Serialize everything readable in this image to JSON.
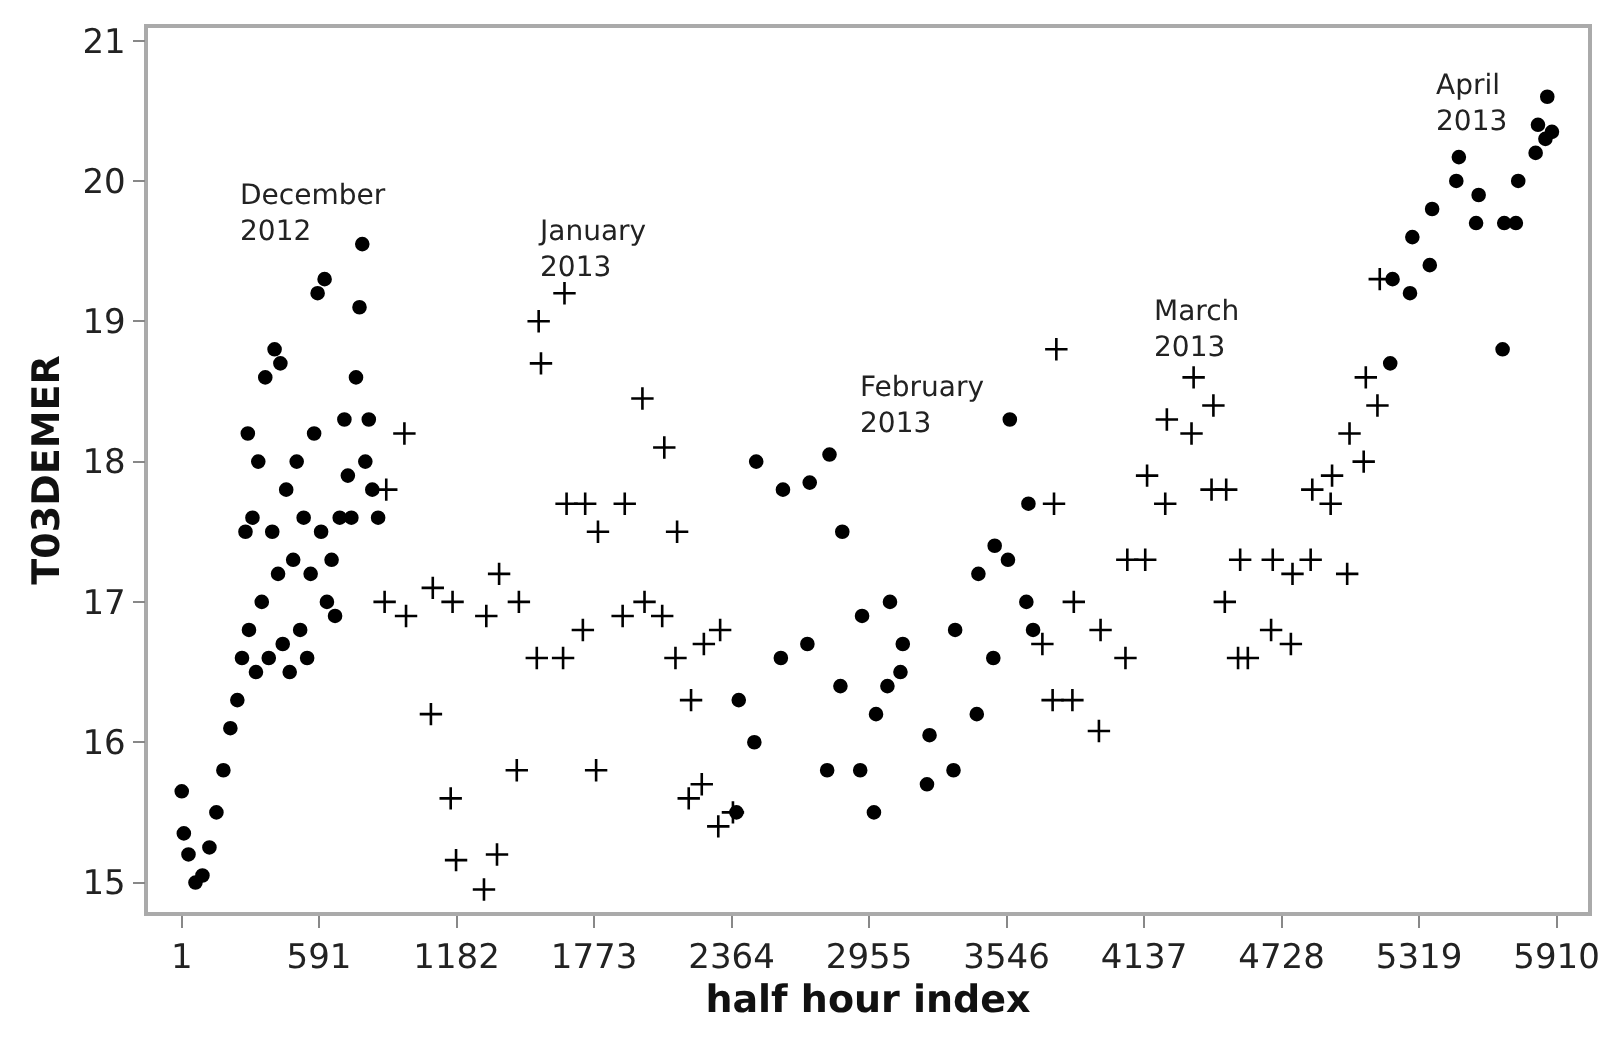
{
  "chart_data": {
    "type": "scatter",
    "xlabel": "half hour index",
    "ylabel": "T03DEMER",
    "xlim": [
      -144,
      6045
    ],
    "ylim": [
      14.79,
      21.09
    ],
    "xticks": [
      1,
      591,
      1182,
      1773,
      2364,
      2955,
      3546,
      4137,
      4728,
      5319,
      5910
    ],
    "yticks": [
      15,
      16,
      17,
      18,
      19,
      20,
      21
    ],
    "series": [
      {
        "color": "#000000",
        "marker": "circle",
        "x": [
          1,
          10,
          30,
          60,
          90,
          120,
          150,
          180,
          210,
          240,
          260,
          275,
          285,
          290,
          305,
          320,
          330,
          345,
          360,
          375,
          390,
          400,
          415,
          425,
          435,
          450,
          465,
          480,
          495,
          510,
          525,
          540,
          555,
          570,
          585,
          600,
          615,
          625,
          645,
          660,
          680,
          700,
          715,
          730,
          750,
          765,
          777,
          790,
          805,
          820,
          845
        ],
        "values": [
          15.65,
          15.35,
          15.2,
          15.0,
          15.05,
          15.25,
          15.5,
          15.8,
          16.1,
          16.3,
          16.6,
          17.5,
          18.2,
          16.8,
          17.6,
          16.5,
          18.0,
          17.0,
          18.6,
          16.6,
          17.5,
          18.8,
          17.2,
          18.7,
          16.7,
          17.8,
          16.5,
          17.3,
          18.0,
          16.8,
          17.6,
          16.6,
          17.2,
          18.2,
          19.2,
          17.5,
          19.3,
          17.0,
          17.3,
          16.9,
          17.6,
          18.3,
          17.9,
          17.6,
          18.6,
          19.1,
          19.55,
          18.0,
          18.3,
          17.8,
          17.6
        ]
      },
      {
        "color": "#000000",
        "marker": "cross",
        "x": [
          873,
          880,
          958,
          965,
          1072,
          1080,
          1157,
          1165,
          1180,
          1300,
          1310,
          1356,
          1365,
          1441,
          1450,
          1527,
          1535,
          1545,
          1640,
          1646,
          1655,
          1725,
          1735,
          1782,
          1790,
          1896,
          1905,
          1981,
          1990,
          2066,
          2075,
          2123,
          2130,
          2180,
          2190,
          2236,
          2245,
          2307,
          2315,
          2370
        ],
        "values": [
          17.0,
          17.8,
          18.2,
          16.9,
          16.2,
          17.1,
          15.6,
          17.0,
          15.16,
          14.95,
          16.9,
          15.2,
          17.2,
          15.8,
          17.0,
          16.6,
          19.0,
          18.7,
          16.6,
          19.2,
          17.7,
          16.8,
          17.7,
          15.8,
          17.5,
          16.9,
          17.7,
          18.45,
          17.0,
          16.9,
          18.1,
          16.6,
          17.5,
          15.6,
          16.3,
          15.7,
          16.7,
          15.4,
          16.8,
          15.5
        ]
      },
      {
        "color": "#000000",
        "marker": "circle",
        "x": [
          2385,
          2395,
          2462,
          2470,
          2576,
          2585,
          2690,
          2700,
          2775,
          2785,
          2832,
          2840,
          2917,
          2925,
          2976,
          2985,
          3034,
          3045,
          3090,
          3100,
          3204,
          3215,
          3318,
          3325,
          3418,
          3425,
          3489,
          3495,
          3552,
          3560,
          3631,
          3640,
          3660
        ],
        "values": [
          15.5,
          16.3,
          16.0,
          18.0,
          16.6,
          17.8,
          16.7,
          17.85,
          15.8,
          18.05,
          16.4,
          17.5,
          15.8,
          16.9,
          15.5,
          16.2,
          16.4,
          17.0,
          16.5,
          16.7,
          15.7,
          16.05,
          15.8,
          16.8,
          16.2,
          17.2,
          16.6,
          17.4,
          17.3,
          18.3,
          17.0,
          17.7,
          16.8
        ]
      },
      {
        "color": "#000000",
        "marker": "cross",
        "x": [
          3700,
          3744,
          3750,
          3760,
          3829,
          3835,
          3943,
          3950,
          4057,
          4065,
          4142,
          4150,
          4228,
          4235,
          4341,
          4350,
          4427,
          4435,
          4484,
          4490,
          4541,
          4550,
          4583,
          4683,
          4690,
          4768,
          4775,
          4853,
          4860,
          4939,
          4945,
          5010,
          5020,
          5081,
          5090,
          5140,
          5150
        ],
        "values": [
          16.7,
          16.3,
          17.7,
          18.8,
          16.3,
          17.0,
          16.08,
          16.8,
          16.6,
          17.3,
          17.3,
          17.9,
          17.7,
          18.3,
          18.2,
          18.6,
          17.8,
          18.4,
          17.0,
          17.8,
          16.6,
          17.3,
          16.6,
          16.8,
          17.3,
          16.7,
          17.2,
          17.3,
          17.8,
          17.7,
          17.9,
          17.2,
          18.2,
          18.0,
          18.6,
          18.4,
          19.3
        ]
      },
      {
        "color": "#000000",
        "marker": "circle",
        "x": [
          5195,
          5205,
          5280,
          5290,
          5365,
          5375,
          5479,
          5490,
          5564,
          5575,
          5678,
          5685,
          5735,
          5745,
          5820,
          5830,
          5862,
          5870,
          5890
        ],
        "values": [
          18.7,
          19.3,
          19.2,
          19.6,
          19.4,
          19.8,
          20.0,
          20.17,
          19.7,
          19.9,
          18.8,
          19.7,
          19.7,
          20.0,
          20.2,
          20.4,
          20.3,
          20.6,
          20.35
        ]
      }
    ],
    "annotations": [
      "December\n2012",
      "January\n2013",
      "February\n2013",
      "March\n2013",
      "April\n2013"
    ]
  }
}
